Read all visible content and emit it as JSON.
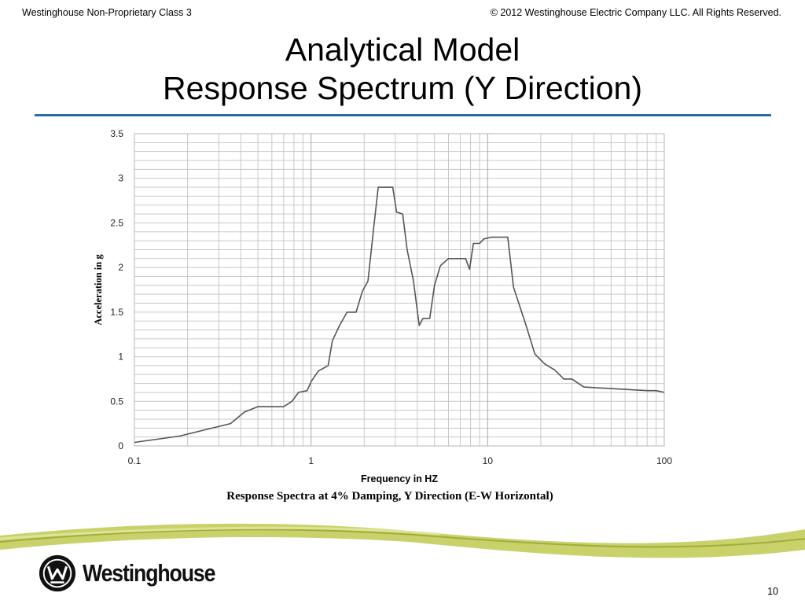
{
  "header": {
    "left": "Westinghouse Non-Proprietary Class 3",
    "right": "© 2012 Westinghouse Electric Company LLC. All Rights Reserved."
  },
  "title": {
    "line1": "Analytical Model",
    "line2": "Response Spectrum (Y Direction)"
  },
  "colors": {
    "rule": "#2c6aa8",
    "curve": "#555555",
    "grid": "#c8c8c8",
    "swoosh": "#b7c64a"
  },
  "chart_data": {
    "type": "line",
    "title": "",
    "caption": "Response Spectra at 4% Damping, Y Direction (E-W Horizontal)",
    "xlabel": "Frequency in HZ",
    "ylabel": "Acceleration in g",
    "x_scale": "log",
    "xlim": [
      0.1,
      100
    ],
    "ylim": [
      0,
      3.5
    ],
    "x_ticks": [
      "0.1",
      "1",
      "10",
      "100"
    ],
    "y_ticks": [
      "0",
      "0.5",
      "1",
      "1.5",
      "2",
      "2.5",
      "3",
      "3.5"
    ],
    "grid": true,
    "legend": "none",
    "series": [
      {
        "name": "",
        "x": [
          0.1,
          0.18,
          0.25,
          0.35,
          0.42,
          0.5,
          0.7,
          0.78,
          0.85,
          0.95,
          1.0,
          1.1,
          1.25,
          1.32,
          1.45,
          1.6,
          1.8,
          1.95,
          2.1,
          2.25,
          2.4,
          2.6,
          2.9,
          3.05,
          3.3,
          3.5,
          3.8,
          4.1,
          4.3,
          4.7,
          5.0,
          5.4,
          6.0,
          7.5,
          7.9,
          8.3,
          9.0,
          9.5,
          10.5,
          13.0,
          14.0,
          15.0,
          16.5,
          18.5,
          21.0,
          24.0,
          27.0,
          30.0,
          35.0,
          80.0,
          90.0,
          100.0
        ],
        "y": [
          0.04,
          0.11,
          0.18,
          0.25,
          0.38,
          0.44,
          0.44,
          0.5,
          0.6,
          0.62,
          0.72,
          0.84,
          0.9,
          1.18,
          1.35,
          1.5,
          1.5,
          1.73,
          1.85,
          2.4,
          2.9,
          2.9,
          2.9,
          2.62,
          2.6,
          2.2,
          1.85,
          1.35,
          1.43,
          1.43,
          1.8,
          2.02,
          2.1,
          2.1,
          1.98,
          2.27,
          2.27,
          2.32,
          2.34,
          2.34,
          1.78,
          1.6,
          1.35,
          1.03,
          0.92,
          0.85,
          0.75,
          0.75,
          0.66,
          0.62,
          0.62,
          0.6
        ]
      }
    ]
  },
  "footer": {
    "logo_text": "Westinghouse",
    "page_number": "10"
  }
}
